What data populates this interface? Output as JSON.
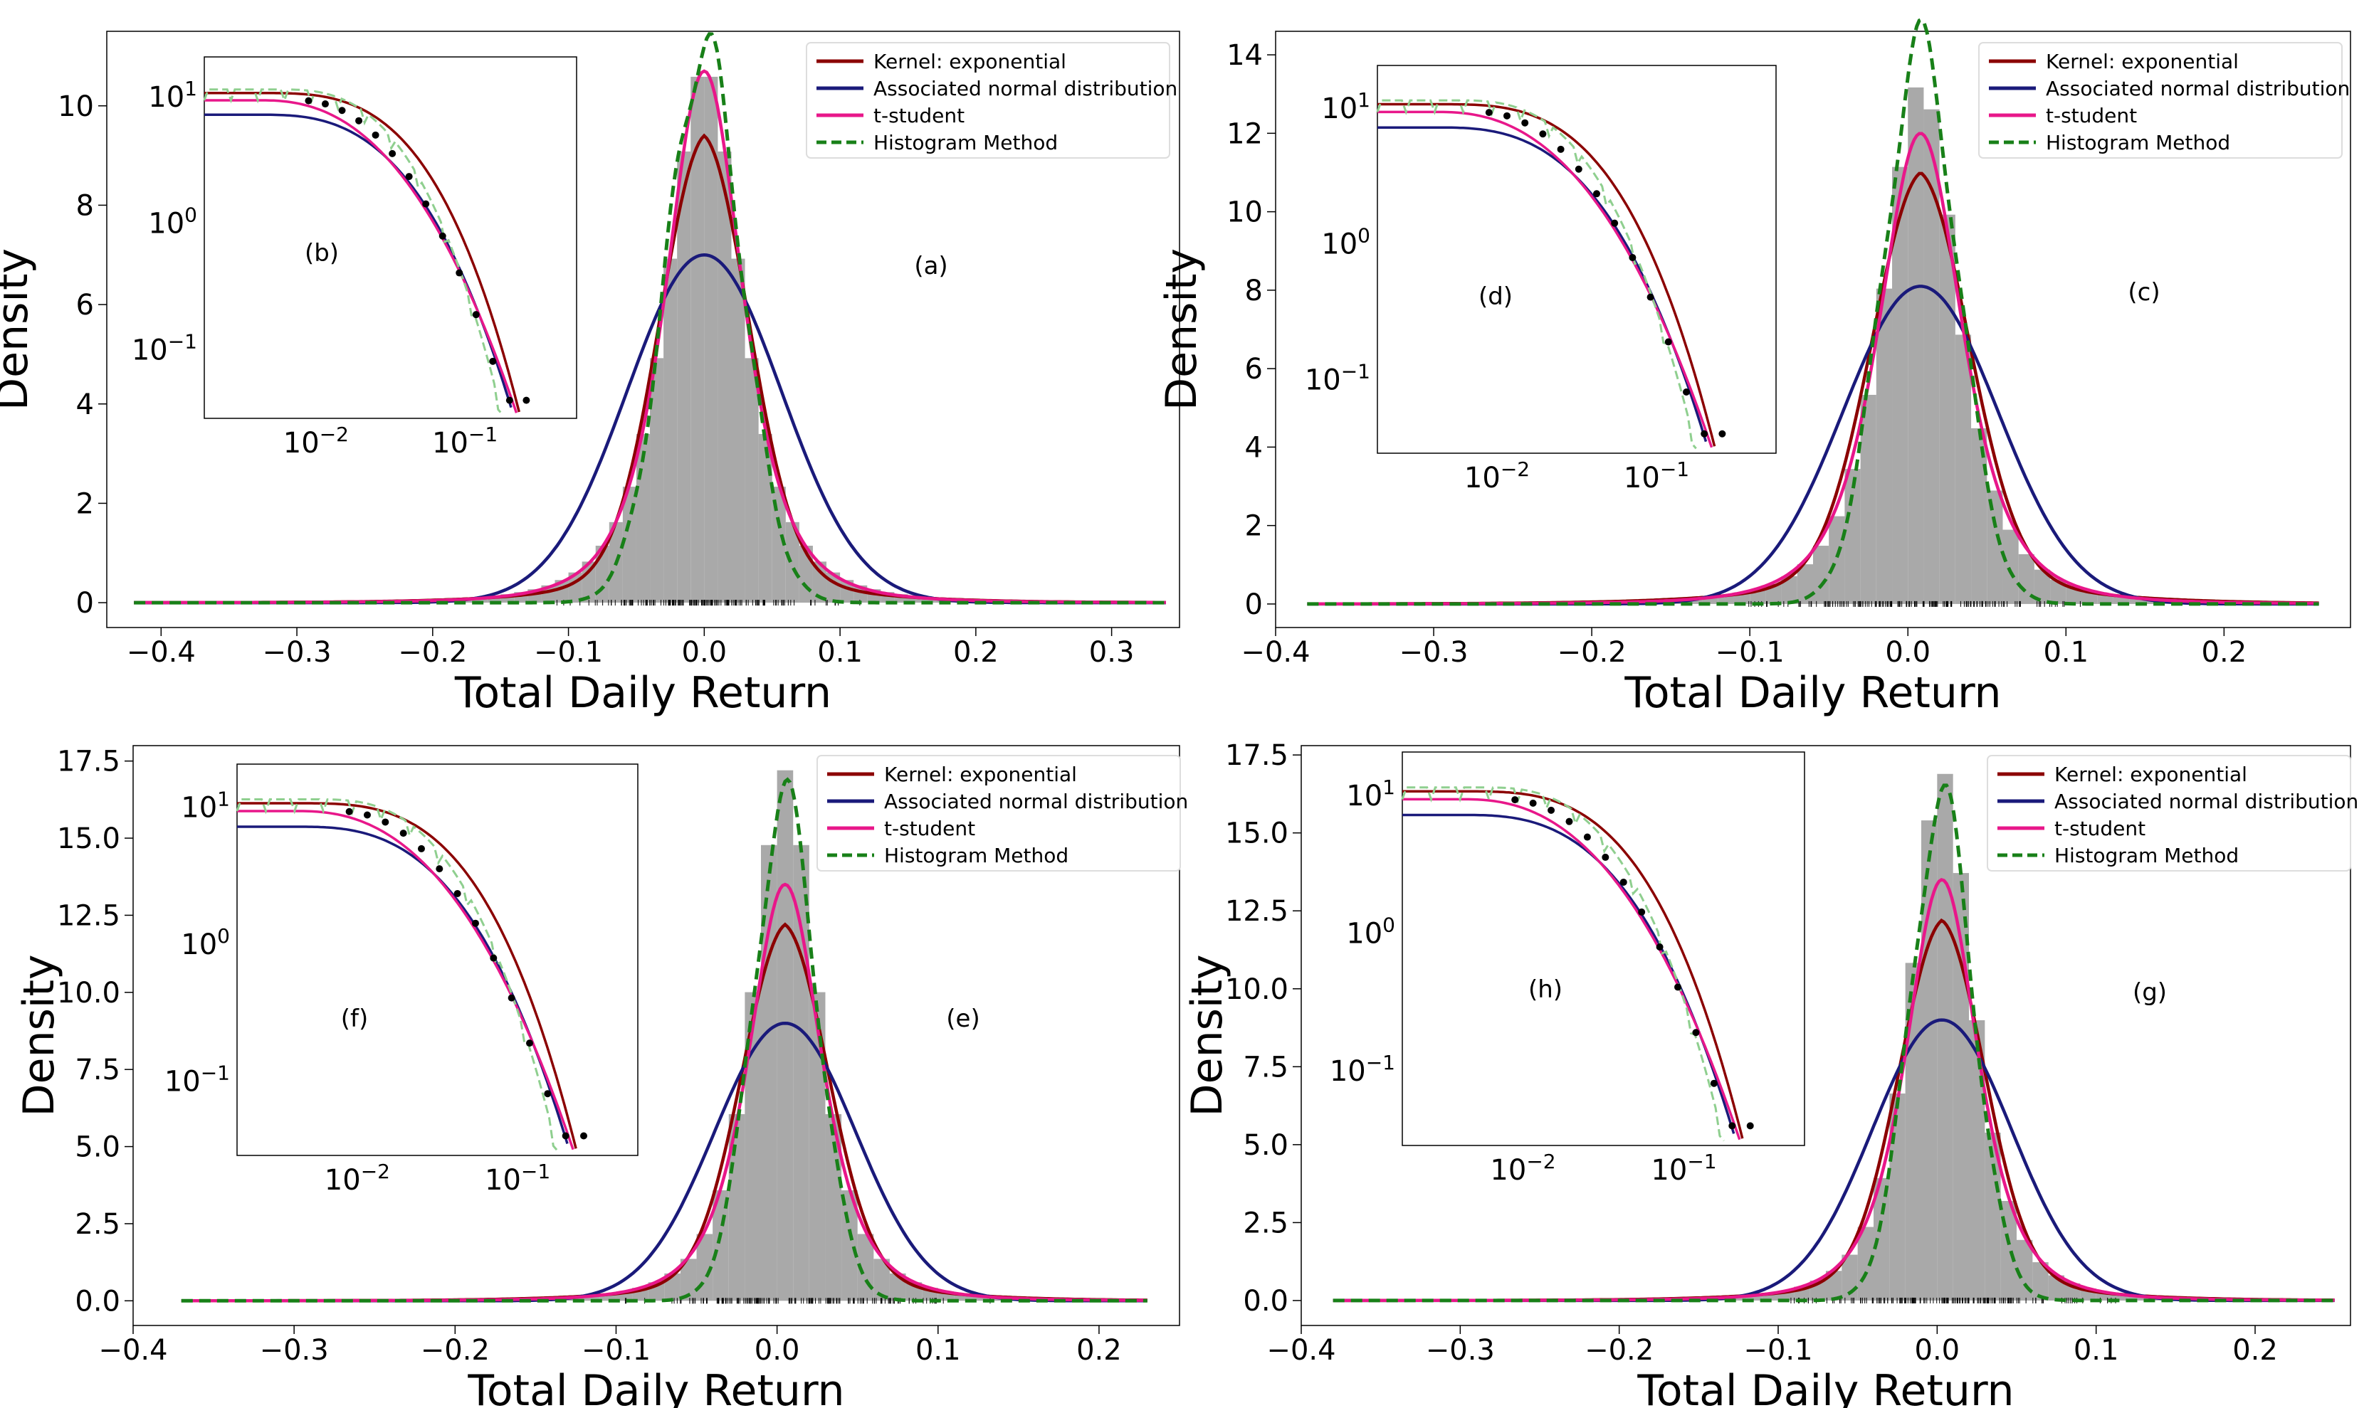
{
  "figure": {
    "legend_entries": [
      {
        "label": "Kernel: exponential",
        "color": "#8b0000",
        "style": "solid"
      },
      {
        "label": "Associated normal distribution",
        "color": "#1a1a7a",
        "style": "solid"
      },
      {
        "label": "t-student",
        "color": "#e8178a",
        "style": "solid"
      },
      {
        "label": "Histogram Method",
        "color": "#188018",
        "style": "dashed"
      }
    ],
    "colors": {
      "histogram": "#a9a9a9",
      "kernel": "#8b0000",
      "normal": "#1a1a7a",
      "tstudent": "#e8178a",
      "histline": "#188018",
      "inset_hist": "#8fcf8f",
      "points": "#000000"
    }
  },
  "chart_data": [
    {
      "type": "line",
      "panel": "(a)",
      "inset_label": "(b)",
      "xlabel": "Total Daily Return",
      "ylabel": "Density",
      "xlim": [
        -0.44,
        0.35
      ],
      "ylim": [
        -0.5,
        11.5
      ],
      "xticks": [
        -0.4,
        -0.3,
        -0.2,
        -0.1,
        0.0,
        0.1,
        0.2,
        0.3
      ],
      "xtick_labels": [
        "−0.4",
        "−0.3",
        "−0.2",
        "−0.1",
        "0.0",
        "0.1",
        "0.2",
        "0.3"
      ],
      "yticks": [
        0,
        2,
        4,
        6,
        8,
        10
      ],
      "ytick_labels": [
        "0",
        "2",
        "4",
        "6",
        "8",
        "10"
      ],
      "data_range": [
        -0.42,
        0.34
      ],
      "mean": 0.0,
      "series": [
        {
          "name": "Kernel: exponential",
          "peak": 9.4,
          "sigma": 0.033,
          "tail": 0.06
        },
        {
          "name": "Associated normal distribution",
          "peak": 7.0,
          "sigma": 0.057
        },
        {
          "name": "t-student",
          "peak": 10.7,
          "sigma": 0.03,
          "df": 3
        },
        {
          "name": "Histogram Method",
          "peak": 11.2,
          "sigma": 0.028
        }
      ],
      "histogram_peak": 10.8,
      "inset": {
        "xtick_labels": [
          "10",
          "10"
        ],
        "xtick_exps": [
          "−2",
          "−1"
        ],
        "ytick_labels": [
          "10",
          "10",
          "10"
        ],
        "ytick_exps": [
          "1",
          "0",
          "−1"
        ]
      }
    },
    {
      "type": "line",
      "panel": "(c)",
      "inset_label": "(d)",
      "xlabel": "Total Daily Return",
      "ylabel": "Density",
      "xlim": [
        -0.4,
        0.28
      ],
      "ylim": [
        -0.6,
        14.6
      ],
      "xticks": [
        -0.4,
        -0.3,
        -0.2,
        -0.1,
        0.0,
        0.1,
        0.2
      ],
      "xtick_labels": [
        "−0.4",
        "−0.3",
        "−0.2",
        "−0.1",
        "0.0",
        "0.1",
        "0.2"
      ],
      "yticks": [
        0,
        2,
        4,
        6,
        8,
        10,
        12,
        14
      ],
      "ytick_labels": [
        "0",
        "2",
        "4",
        "6",
        "8",
        "10",
        "12",
        "14"
      ],
      "data_range": [
        -0.38,
        0.26
      ],
      "mean": 0.008,
      "series": [
        {
          "name": "Kernel: exponential",
          "peak": 11.0,
          "sigma": 0.031,
          "tail": 0.06
        },
        {
          "name": "Associated normal distribution",
          "peak": 8.1,
          "sigma": 0.049
        },
        {
          "name": "t-student",
          "peak": 12.0,
          "sigma": 0.028,
          "df": 3
        },
        {
          "name": "Histogram Method",
          "peak": 14.2,
          "sigma": 0.024
        }
      ],
      "histogram_peak": 13.3,
      "inset": {
        "xtick_labels": [
          "10",
          "10"
        ],
        "xtick_exps": [
          "−2",
          "−1"
        ],
        "ytick_labels": [
          "10",
          "10",
          "10"
        ],
        "ytick_exps": [
          "1",
          "0",
          "−1"
        ]
      }
    },
    {
      "type": "line",
      "panel": "(e)",
      "inset_label": "(f)",
      "xlabel": "Total Daily Return",
      "ylabel": "Density",
      "xlim": [
        -0.4,
        0.25
      ],
      "ylim": [
        -0.8,
        18.0
      ],
      "xticks": [
        -0.4,
        -0.3,
        -0.2,
        -0.1,
        0.0,
        0.1,
        0.2
      ],
      "xtick_labels": [
        "−0.4",
        "−0.3",
        "−0.2",
        "−0.1",
        "0.0",
        "0.1",
        "0.2"
      ],
      "yticks": [
        0,
        2.5,
        5,
        7.5,
        10,
        12.5,
        15,
        17.5
      ],
      "ytick_labels": [
        "0.0",
        "2.5",
        "5.0",
        "7.5",
        "10.0",
        "12.5",
        "15.0",
        "17.5"
      ],
      "data_range": [
        -0.37,
        0.23
      ],
      "mean": 0.005,
      "series": [
        {
          "name": "Kernel: exponential",
          "peak": 12.2,
          "sigma": 0.027,
          "tail": 0.05
        },
        {
          "name": "Associated normal distribution",
          "peak": 9.0,
          "sigma": 0.044
        },
        {
          "name": "t-student",
          "peak": 13.5,
          "sigma": 0.024,
          "df": 3
        },
        {
          "name": "Histogram Method",
          "peak": 16.2,
          "sigma": 0.02
        }
      ],
      "histogram_peak": 17.2,
      "inset": {
        "xtick_labels": [
          "10",
          "10"
        ],
        "xtick_exps": [
          "−2",
          "−1"
        ],
        "ytick_labels": [
          "10",
          "10",
          "10"
        ],
        "ytick_exps": [
          "1",
          "0",
          "−1"
        ]
      }
    },
    {
      "type": "line",
      "panel": "(g)",
      "inset_label": "(h)",
      "xlabel": "Total Daily Return",
      "ylabel": "Density",
      "xlim": [
        -0.4,
        0.26
      ],
      "ylim": [
        -0.8,
        17.8
      ],
      "xticks": [
        -0.4,
        -0.3,
        -0.2,
        -0.1,
        0.0,
        0.1,
        0.2
      ],
      "xtick_labels": [
        "−0.4",
        "−0.3",
        "−0.2",
        "−0.1",
        "0.0",
        "0.1",
        "0.2"
      ],
      "yticks": [
        0,
        2.5,
        5,
        7.5,
        10,
        12.5,
        15,
        17.5
      ],
      "ytick_labels": [
        "0.0",
        "2.5",
        "5.0",
        "7.5",
        "10.0",
        "12.5",
        "15.0",
        "17.5"
      ],
      "data_range": [
        -0.38,
        0.25
      ],
      "mean": 0.003,
      "series": [
        {
          "name": "Kernel: exponential",
          "peak": 12.2,
          "sigma": 0.027,
          "tail": 0.05
        },
        {
          "name": "Associated normal distribution",
          "peak": 9.0,
          "sigma": 0.044
        },
        {
          "name": "t-student",
          "peak": 13.5,
          "sigma": 0.024,
          "df": 3
        },
        {
          "name": "Histogram Method",
          "peak": 16.0,
          "sigma": 0.02
        }
      ],
      "histogram_peak": 17.0,
      "inset": {
        "xtick_labels": [
          "10",
          "10"
        ],
        "xtick_exps": [
          "−2",
          "−1"
        ],
        "ytick_labels": [
          "10",
          "10",
          "10"
        ],
        "ytick_exps": [
          "1",
          "0",
          "−1"
        ]
      }
    }
  ]
}
